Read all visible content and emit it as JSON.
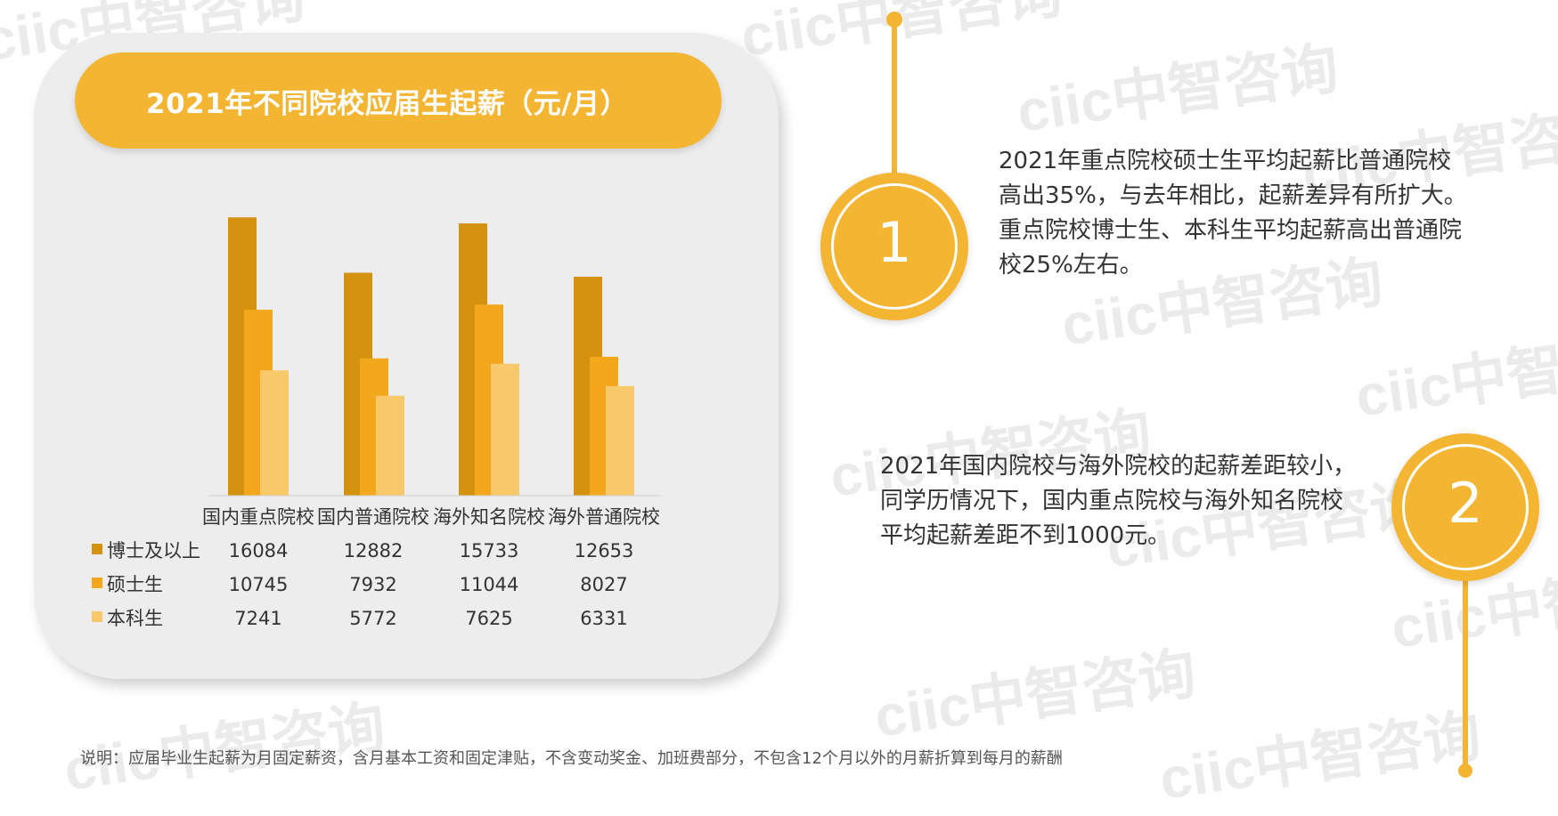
{
  "watermark_text": "ciic中智咨询",
  "colors": {
    "accent": "#f4b533",
    "doctor": "#d4920f",
    "master": "#f3a81b",
    "bachelor": "#f8c96b",
    "card": "#ededed"
  },
  "chart_data": {
    "type": "bar",
    "title": "2021年不同院校应届生起薪（元/月）",
    "categories": [
      "国内重点院校",
      "国内普通院校",
      "海外知名院校",
      "海外普通院校"
    ],
    "series": [
      {
        "name": "博士及以上",
        "values": [
          16084,
          12882,
          15733,
          12653
        ]
      },
      {
        "name": "硕士生",
        "values": [
          10745,
          7932,
          11044,
          8027
        ]
      },
      {
        "name": "本科生",
        "values": [
          7241,
          5772,
          7625,
          6331
        ]
      }
    ],
    "ylim": [
      0,
      18000
    ],
    "grid": false,
    "legend_placement": "data-table-left"
  },
  "notes": [
    {
      "number": "1",
      "lines": [
        "2021年重点院校硕士生平均起薪比普通院校",
        "高出35%，与去年相比，起薪差异有所扩大。",
        "重点院校博士生、本科生平均起薪高出普通院",
        "校25%左右。"
      ]
    },
    {
      "number": "2",
      "lines": [
        "2021年国内院校与海外院校的起薪差距较小，",
        "同学历情况下，国内重点院校与海外知名院校",
        "平均起薪差距不到1000元。"
      ]
    }
  ],
  "footnote": "说明：应届毕业生起薪为月固定薪资，含月基本工资和固定津贴，不含变动奖金、加班费部分，不包含12个月以外的月薪折算到每月的薪酬"
}
